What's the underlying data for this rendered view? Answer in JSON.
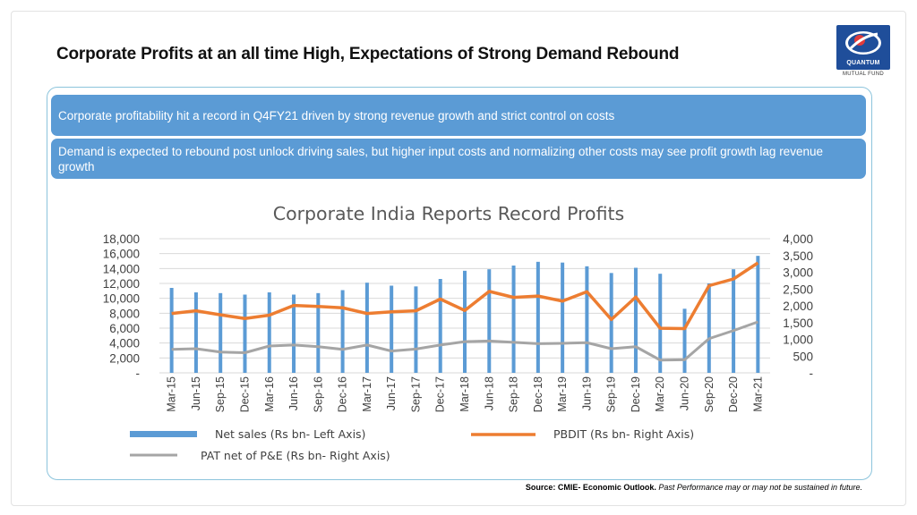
{
  "slide": {
    "title": "Corporate Profits at an all time High, Expectations of Strong Demand Rebound",
    "logo_name": "QUANTUM",
    "logo_subtitle": "MUTUAL FUND",
    "bullets": [
      "Corporate profitability hit a record in Q4FY21 driven by  strong revenue growth and strict control on costs",
      "Demand is expected to rebound post unlock driving sales, but higher input costs and normalizing other costs may see profit growth lag revenue growth"
    ],
    "source_label": "Source: CMIE- Economic Outlook.",
    "source_disclaimer": "Past Performance may or may not be  sustained in future.",
    "colors": {
      "bullet_bg": "#5b9bd5",
      "net_sales": "#5b9bd5",
      "pbdit": "#ed7d31",
      "pat": "#a5a5a5",
      "logo_blue": "#1f4e9a"
    }
  },
  "chart_data": {
    "type": "bar",
    "title": "Corporate India Reports Record Profits",
    "categories": [
      "Mar-15",
      "Jun-15",
      "Sep-15",
      "Dec-15",
      "Mar-16",
      "Jun-16",
      "Sep-16",
      "Dec-16",
      "Mar-17",
      "Jun-17",
      "Sep-17",
      "Dec-17",
      "Mar-18",
      "Jun-18",
      "Sep-18",
      "Dec-18",
      "Mar-19",
      "Jun-19",
      "Sep-19",
      "Dec-19",
      "Mar-20",
      "Jun-20",
      "Sep-20",
      "Dec-20",
      "Mar-21"
    ],
    "left_axis": {
      "ylim": [
        0,
        18000
      ],
      "ticks": [
        "-",
        "2,000",
        "4,000",
        "6,000",
        "8,000",
        "10,000",
        "12,000",
        "14,000",
        "16,000",
        "18,000"
      ]
    },
    "right_axis": {
      "ylim": [
        0,
        4000
      ],
      "ticks": [
        "-",
        "500",
        "1,000",
        "1,500",
        "2,000",
        "2,500",
        "3,000",
        "3,500",
        "4,000"
      ]
    },
    "series": [
      {
        "name": "Net sales (Rs bn- Left Axis)",
        "type": "bar",
        "axis": "left",
        "values": [
          11400,
          10800,
          10700,
          10500,
          10800,
          10500,
          10700,
          11100,
          12100,
          11700,
          11600,
          12600,
          13700,
          13900,
          14400,
          14900,
          14800,
          14300,
          13400,
          14100,
          13300,
          8600,
          12000,
          13900,
          15700
        ]
      },
      {
        "name": "PBDIT (Rs bn- Right Axis)",
        "type": "line",
        "axis": "right",
        "values": [
          1770,
          1850,
          1730,
          1620,
          1720,
          2010,
          1980,
          1940,
          1770,
          1820,
          1850,
          2200,
          1860,
          2430,
          2250,
          2290,
          2140,
          2420,
          1590,
          2260,
          1330,
          1320,
          2600,
          2800,
          3280
        ]
      },
      {
        "name": "PAT net of P&E (Rs bn- Right Axis)",
        "type": "line",
        "axis": "right",
        "values": [
          700,
          720,
          620,
          600,
          800,
          830,
          780,
          700,
          830,
          650,
          710,
          830,
          930,
          950,
          910,
          870,
          880,
          900,
          720,
          780,
          380,
          390,
          1020,
          1260,
          1520
        ]
      }
    ]
  }
}
